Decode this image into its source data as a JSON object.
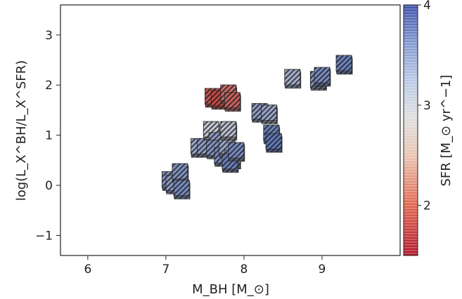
{
  "chart_data": {
    "type": "scatter",
    "title": "",
    "xlabel": "M_BH [M_⊙]",
    "ylabel": "log(L_X^BH/L_X^SFR)",
    "xlim": [
      5.65,
      10.0
    ],
    "ylim": [
      -1.4,
      3.6
    ],
    "x_ticks": [
      "6",
      "7",
      "8",
      "9"
    ],
    "y_ticks": [
      "−1",
      "0",
      "1",
      "2",
      "3"
    ],
    "grid": false,
    "marker": "hatched square",
    "colorbar": {
      "label": "SFR [M_⊙ yr^−1]",
      "range": [
        1.5,
        4.0
      ],
      "ticks": [
        "2",
        "3",
        "4"
      ],
      "colormap": "coolwarm",
      "low_color": "#c8403a",
      "mid_color": "#dcdcdc",
      "high_color": "#4f6bb8"
    },
    "points": [
      {
        "x": 7.05,
        "y": 0.12,
        "sfr": 3.5
      },
      {
        "x": 7.1,
        "y": 0.05,
        "sfr": 3.4
      },
      {
        "x": 7.18,
        "y": 0.28,
        "sfr": 3.5
      },
      {
        "x": 7.2,
        "y": -0.05,
        "sfr": 3.6
      },
      {
        "x": 7.42,
        "y": 0.78,
        "sfr": 3.3
      },
      {
        "x": 7.5,
        "y": 0.78,
        "sfr": 3.4
      },
      {
        "x": 7.58,
        "y": 1.12,
        "sfr": 2.9
      },
      {
        "x": 7.65,
        "y": 0.9,
        "sfr": 3.4
      },
      {
        "x": 7.62,
        "y": 0.75,
        "sfr": 3.5
      },
      {
        "x": 7.72,
        "y": 0.6,
        "sfr": 3.6
      },
      {
        "x": 7.78,
        "y": 0.78,
        "sfr": 3.3
      },
      {
        "x": 7.8,
        "y": 1.12,
        "sfr": 3.0
      },
      {
        "x": 7.85,
        "y": 0.55,
        "sfr": 3.5
      },
      {
        "x": 7.82,
        "y": 0.48,
        "sfr": 3.7
      },
      {
        "x": 7.9,
        "y": 0.7,
        "sfr": 3.6
      },
      {
        "x": 7.6,
        "y": 1.78,
        "sfr": 1.7
      },
      {
        "x": 7.68,
        "y": 1.74,
        "sfr": 1.6
      },
      {
        "x": 7.8,
        "y": 1.85,
        "sfr": 1.9
      },
      {
        "x": 7.85,
        "y": 1.7,
        "sfr": 1.8
      },
      {
        "x": 8.2,
        "y": 1.48,
        "sfr": 3.4
      },
      {
        "x": 8.32,
        "y": 1.45,
        "sfr": 3.3
      },
      {
        "x": 8.35,
        "y": 1.05,
        "sfr": 3.7
      },
      {
        "x": 8.38,
        "y": 0.88,
        "sfr": 3.8
      },
      {
        "x": 8.62,
        "y": 2.16,
        "sfr": 3.2
      },
      {
        "x": 8.95,
        "y": 2.12,
        "sfr": 3.5
      },
      {
        "x": 9.0,
        "y": 2.2,
        "sfr": 3.6
      },
      {
        "x": 9.28,
        "y": 2.44,
        "sfr": 3.7
      }
    ]
  }
}
